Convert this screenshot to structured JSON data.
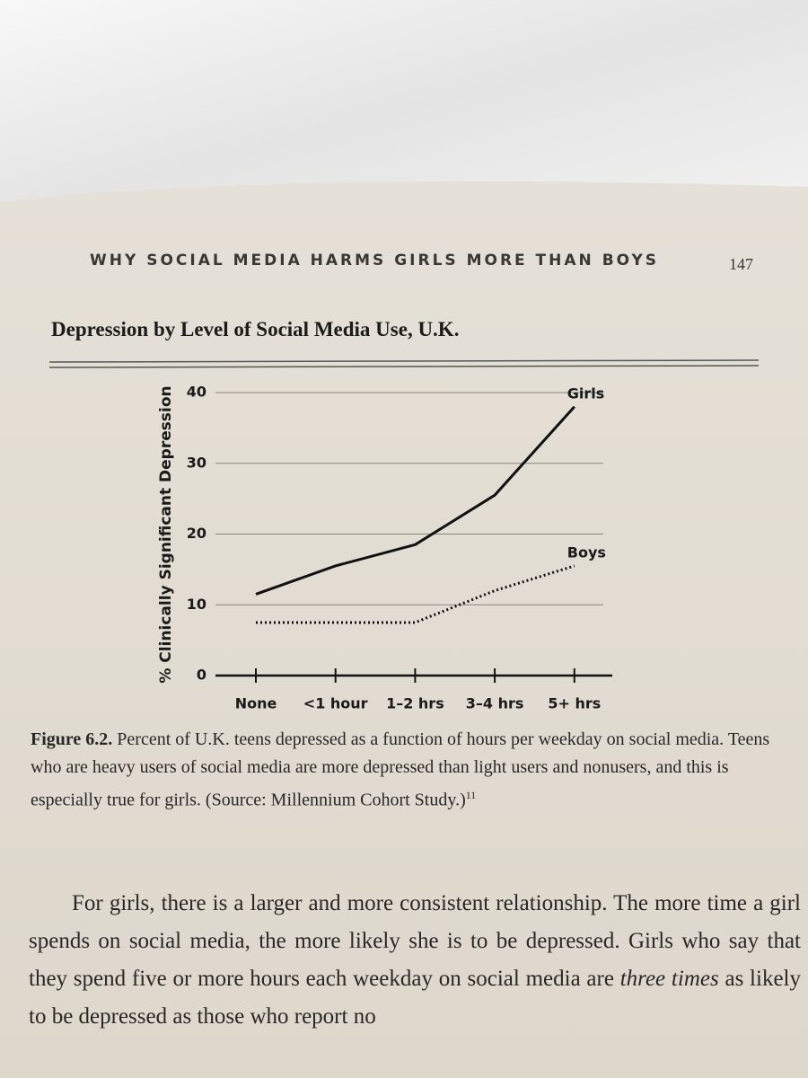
{
  "header": {
    "running_head": "WHY SOCIAL MEDIA HARMS GIRLS MORE THAN BOYS",
    "page_number": "147"
  },
  "chart_data": {
    "type": "line",
    "title": "Depression by Level of Social Media Use, U.K.",
    "y_label": "% Clinically Significant Depression",
    "categories": [
      "None",
      "<1 hour",
      "1–2 hrs",
      "3–4 hrs",
      "5+ hrs"
    ],
    "series": [
      {
        "name": "Girls",
        "color": "#111111",
        "style": "solid",
        "values": [
          11.5,
          15.5,
          18.5,
          25.5,
          38
        ]
      },
      {
        "name": "Boys",
        "color": "#111111",
        "style": "dotted",
        "values": [
          7.5,
          7.5,
          7.5,
          12,
          15.5
        ]
      }
    ],
    "ylim": [
      0,
      40
    ],
    "yticks": [
      0,
      10,
      20,
      30,
      40
    ],
    "grid": true
  },
  "caption": {
    "label": "Figure 6.2.",
    "text": "Percent of U.K. teens depressed as a function of hours per weekday on social media. Teens who are heavy users of social media are more depressed than light users and nonusers, and this is especially true for girls. (Source: Millennium Cohort Study.)",
    "note": "11"
  },
  "body": [
    "For girls, there is a larger and more consistent relationship. The more time a girl spends on social media, the more likely she is to be depressed. Girls who say that they spend five or more hours each weekday on social media are ",
    "three times",
    " as likely to be depressed as those who report no"
  ]
}
